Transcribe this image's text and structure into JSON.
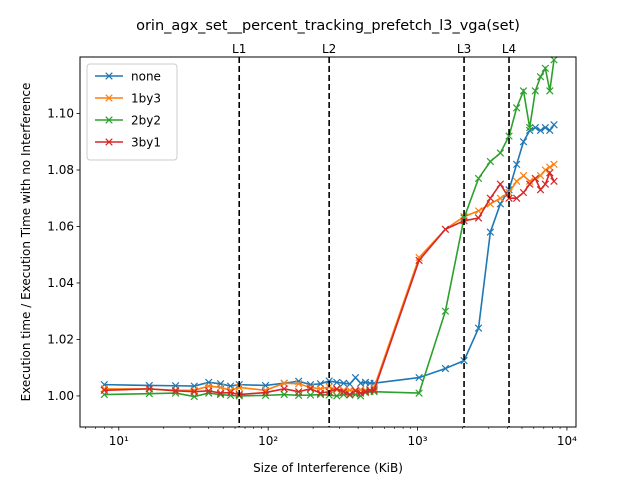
{
  "chart_data": {
    "type": "line",
    "title": "orin_agx_set__percent_tracking_prefetch_l3_vga(set)",
    "xlabel": "Size of Interference (KiB)",
    "ylabel": "Execution time / Execution Time with no Interference",
    "xscale": "log",
    "xlim": [
      5.5,
      11500
    ],
    "ylim": [
      0.989,
      1.12
    ],
    "x_ticks": [
      10,
      100,
      1000,
      10000
    ],
    "x_tick_labels": [
      "10¹",
      "10²",
      "10³",
      "10⁴"
    ],
    "y_ticks": [
      1.0,
      1.02,
      1.04,
      1.06,
      1.08,
      1.1
    ],
    "y_tick_labels": [
      "1.00",
      "1.02",
      "1.04",
      "1.06",
      "1.08",
      "1.10"
    ],
    "grid": false,
    "legend_position": "top-left",
    "vlines": [
      {
        "label": "L1",
        "x": 64
      },
      {
        "label": "L2",
        "x": 256
      },
      {
        "label": "L3",
        "x": 2048
      },
      {
        "label": "L4",
        "x": 4096
      }
    ],
    "series": [
      {
        "name": "none",
        "color": "#1f77b4",
        "x": [
          8,
          16,
          24,
          32,
          40,
          48,
          56,
          64,
          96,
          128,
          160,
          192,
          224,
          256,
          288,
          320,
          352,
          384,
          416,
          448,
          480,
          512,
          1024,
          1536,
          2048,
          2560,
          3072,
          3584,
          4096,
          4608,
          5120,
          5632,
          6144,
          6656,
          7168,
          7680,
          8192
        ],
        "y": [
          1.004,
          1.0037,
          1.0036,
          1.0035,
          1.0048,
          1.0043,
          1.0035,
          1.004,
          1.0037,
          1.0045,
          1.0052,
          1.004,
          1.0043,
          1.0053,
          1.0048,
          1.0045,
          1.0042,
          1.0065,
          1.0045,
          1.0048,
          1.0045,
          1.0045,
          1.0065,
          1.0097,
          1.0125,
          1.024,
          1.058,
          1.068,
          1.073,
          1.082,
          1.09,
          1.094,
          1.095,
          1.094,
          1.095,
          1.094,
          1.096
        ]
      },
      {
        "name": "1by3",
        "color": "#ff7f0e",
        "x": [
          8,
          16,
          24,
          32,
          40,
          48,
          56,
          64,
          96,
          128,
          160,
          192,
          224,
          256,
          288,
          320,
          352,
          384,
          416,
          448,
          480,
          512,
          1024,
          1536,
          2048,
          2560,
          3072,
          3584,
          4096,
          4608,
          5120,
          5632,
          6144,
          6656,
          7168,
          7680,
          8192
        ],
        "y": [
          1.0025,
          1.0025,
          1.002,
          1.002,
          1.0035,
          1.003,
          1.002,
          1.003,
          1.002,
          1.0045,
          1.0043,
          1.003,
          1.0025,
          1.0032,
          1.0022,
          1.002,
          1.002,
          1.002,
          1.0022,
          1.002,
          1.002,
          1.003,
          1.049,
          1.059,
          1.0635,
          1.0655,
          1.068,
          1.07,
          1.072,
          1.076,
          1.078,
          1.076,
          1.077,
          1.078,
          1.08,
          1.081,
          1.082
        ]
      },
      {
        "name": "2by2",
        "color": "#2ca02c",
        "x": [
          8,
          16,
          24,
          32,
          40,
          48,
          56,
          64,
          96,
          128,
          160,
          192,
          224,
          256,
          288,
          320,
          352,
          384,
          416,
          448,
          480,
          512,
          1024,
          1536,
          2048,
          2560,
          3072,
          3584,
          4096,
          4608,
          5120,
          5632,
          6144,
          6656,
          7168,
          7680,
          8192
        ],
        "y": [
          1.0005,
          1.0008,
          1.001,
          0.9998,
          1.001,
          1.0005,
          1.0002,
          1.0,
          1.0002,
          1.0005,
          1.0002,
          1.0003,
          1.0005,
          1.0003,
          1.0,
          1.0005,
          1.0003,
          1.0005,
          1.0,
          1.0012,
          1.0015,
          1.0015,
          1.001,
          1.03,
          1.063,
          1.077,
          1.083,
          1.086,
          1.092,
          1.102,
          1.108,
          1.095,
          1.108,
          1.113,
          1.116,
          1.108,
          1.119
        ]
      },
      {
        "name": "3by1",
        "color": "#d62728",
        "x": [
          8,
          16,
          24,
          32,
          40,
          48,
          56,
          64,
          96,
          128,
          160,
          192,
          224,
          256,
          288,
          320,
          352,
          384,
          416,
          448,
          480,
          512,
          1024,
          1536,
          2048,
          2560,
          3072,
          3584,
          4096,
          4608,
          5120,
          5632,
          6144,
          6656,
          7168,
          7680,
          8192
        ],
        "y": [
          1.002,
          1.0025,
          1.0018,
          1.0015,
          1.0018,
          1.001,
          1.0012,
          1.0005,
          1.0012,
          1.0025,
          1.0015,
          1.0025,
          1.001,
          1.0015,
          1.0025,
          1.0015,
          1.0005,
          1.0018,
          1.001,
          1.0015,
          1.002,
          1.002,
          1.048,
          1.059,
          1.062,
          1.063,
          1.07,
          1.075,
          1.07,
          1.07,
          1.072,
          1.075,
          1.077,
          1.073,
          1.075,
          1.079,
          1.076
        ]
      }
    ]
  }
}
